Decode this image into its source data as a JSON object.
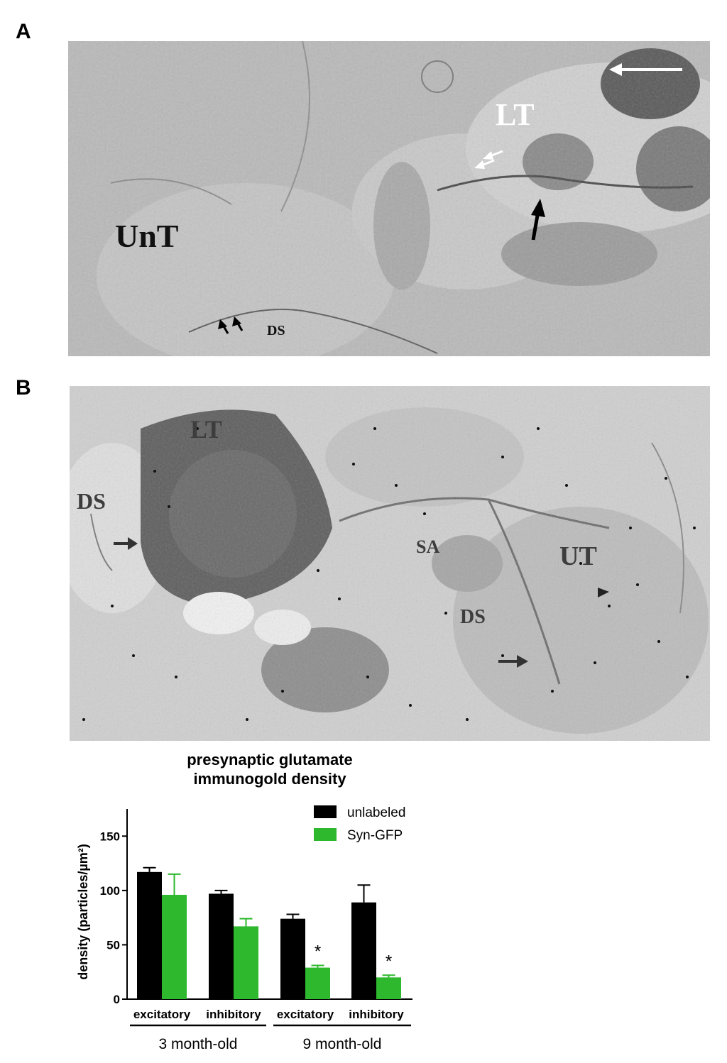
{
  "panels": {
    "a": {
      "letter": "A",
      "labels": {
        "unt": "UnT",
        "lt": "LT",
        "ds": "DS"
      }
    },
    "b": {
      "letter": "B",
      "labels": {
        "lt": "LT",
        "ds_left": "DS",
        "sa": "SA",
        "ut": "UT",
        "ds_right": "DS"
      }
    }
  },
  "chart_title_line1": "presynaptic glutamate",
  "chart_title_line2": "immunogold density",
  "colors": {
    "unlabeled": "#000000",
    "syn_gfp": "#2db82d"
  },
  "chart_data": {
    "type": "bar",
    "title": "presynaptic glutamate immunogold density",
    "ylabel": "density (particles/µm²)",
    "ylim": [
      0,
      175
    ],
    "yticks": [
      0,
      50,
      100,
      150
    ],
    "categories": [
      "excitatory",
      "inhibitory",
      "excitatory",
      "inhibitory"
    ],
    "groups": [
      {
        "label": "3 month-old",
        "categories": [
          0,
          1
        ]
      },
      {
        "label": "9 month-old",
        "categories": [
          2,
          3
        ]
      }
    ],
    "series": [
      {
        "name": "unlabeled",
        "color": "#000000",
        "values": [
          117,
          97,
          74,
          89
        ],
        "errors": [
          4,
          3,
          4,
          16
        ]
      },
      {
        "name": "Syn-GFP",
        "color": "#2db82d",
        "values": [
          96,
          67,
          29,
          20
        ],
        "errors": [
          19,
          7,
          2,
          2
        ]
      }
    ],
    "significance": [
      {
        "category": 2,
        "series": "Syn-GFP",
        "mark": "*"
      },
      {
        "category": 3,
        "series": "Syn-GFP",
        "mark": "*"
      }
    ],
    "legend": "top-right"
  }
}
